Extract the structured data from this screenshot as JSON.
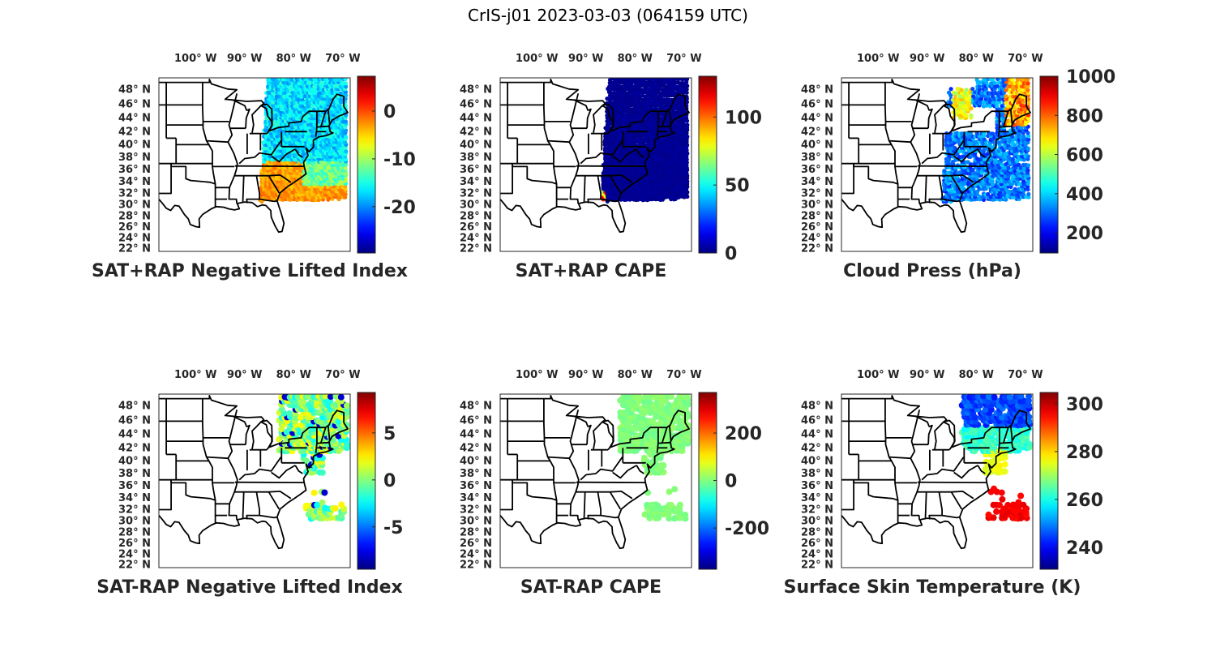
{
  "figure_title": "CrIS-j01 2023-03-03 (064159 UTC)",
  "chart_data": [
    {
      "type": "scatter",
      "map": "eastern-us",
      "title": "SAT+RAP Negative Lifted Index",
      "colormap": "jet",
      "clim": [
        -29.7,
        7.3
      ],
      "colorbar_ticks": [
        0,
        -10,
        -20
      ],
      "colorbar_labels": [
        "0",
        "-10",
        "-20"
      ],
      "coverage": "full-swath",
      "swath_lon": [
        -85,
        -67
      ],
      "swath_lat": [
        30.5,
        49.5
      ]
    },
    {
      "type": "scatter",
      "map": "eastern-us",
      "title": "SAT+RAP CAPE",
      "colormap": "jet",
      "clim": [
        0,
        130
      ],
      "colorbar_ticks": [
        100,
        50,
        0
      ],
      "colorbar_labels": [
        "100",
        "50",
        "0"
      ],
      "coverage": "full-swath",
      "swath_lon": [
        -85,
        -67
      ],
      "swath_lat": [
        30.5,
        49.5
      ]
    },
    {
      "type": "scatter",
      "map": "eastern-us",
      "title": "Cloud Press (hPa)",
      "colormap": "jet",
      "clim": [
        97,
        1000
      ],
      "colorbar_ticks": [
        1000,
        800,
        600,
        400,
        200
      ],
      "colorbar_labels": [
        "1000",
        "800",
        "600",
        "400",
        "200"
      ],
      "coverage": "cloudy",
      "swath_lon": [
        -85,
        -67
      ],
      "swath_lat": [
        30.5,
        49.5
      ]
    },
    {
      "type": "scatter",
      "map": "eastern-us",
      "title": "SAT-RAP Negative Lifted Index",
      "colormap": "jet",
      "clim": [
        -9.5,
        9.3
      ],
      "colorbar_ticks": [
        5,
        0,
        -5
      ],
      "colorbar_labels": [
        "5",
        "0",
        "-5"
      ],
      "coverage": "sparse",
      "swath_lon": [
        -81,
        -67
      ],
      "swath_lat": [
        30,
        49.5
      ]
    },
    {
      "type": "scatter",
      "map": "eastern-us",
      "title": "SAT-RAP CAPE",
      "colormap": "jet",
      "clim": [
        -374,
        371
      ],
      "colorbar_ticks": [
        200,
        0,
        -200
      ],
      "colorbar_labels": [
        "200",
        "0",
        "-200"
      ],
      "coverage": "sparse",
      "swath_lon": [
        -81,
        -67
      ],
      "swath_lat": [
        30,
        49.5
      ]
    },
    {
      "type": "scatter",
      "map": "eastern-us",
      "title": "Surface Skin Temperature (K)",
      "colormap": "jet",
      "clim": [
        230.8,
        304.7
      ],
      "colorbar_ticks": [
        300,
        280,
        260,
        240
      ],
      "colorbar_labels": [
        "300",
        "280",
        "260",
        "240"
      ],
      "coverage": "sparse",
      "swath_lon": [
        -81,
        -67
      ],
      "swath_lat": [
        30,
        49.5
      ]
    }
  ],
  "axes": {
    "lon_range": [
      -105.5,
      -66.5
    ],
    "lat_range": [
      21.5,
      49.6
    ],
    "lon_ticks": [
      -100,
      -90,
      -80,
      -70
    ],
    "lon_labels": [
      "100° W",
      "90° W",
      "80° W",
      "70° W"
    ],
    "lat_ticks": [
      48,
      46,
      44,
      42,
      40,
      38,
      36,
      34,
      32,
      30,
      28,
      26,
      24,
      22
    ],
    "lat_labels": [
      "48° N",
      "46° N",
      "44° N",
      "42° N",
      "40° N",
      "38° N",
      "36° N",
      "34° N",
      "32° N",
      "30° N",
      "28° N",
      "26° N",
      "24° N",
      "22° N"
    ]
  }
}
